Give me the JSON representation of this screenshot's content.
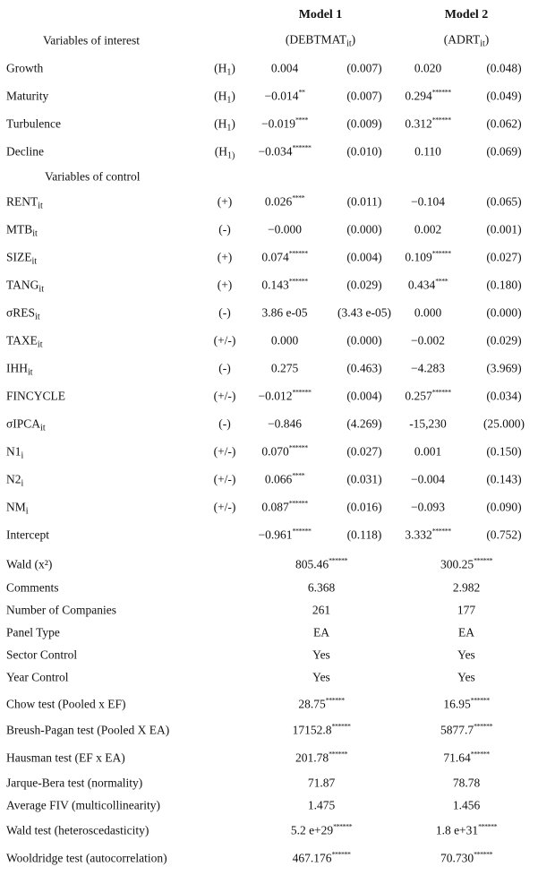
{
  "header": {
    "model1": {
      "title": "Model 1",
      "dep": "(DEBTMAT",
      "sub": "it",
      "close": ")"
    },
    "model2": {
      "title": "Model 2",
      "dep": "(ADRT",
      "sub": "it",
      "close": ")"
    }
  },
  "sections": {
    "interest": "Variables of interest",
    "control": "Variables of control"
  },
  "interest_rows": [
    {
      "label": "Growth",
      "sign": {
        "text": "(H",
        "sub": "1",
        "close": ")"
      },
      "m1": "0.004",
      "m1_se": "(0.007)",
      "m2": "0.020",
      "m2_se": "(0.048)"
    },
    {
      "label": "Maturity",
      "sign": {
        "text": "(H",
        "sub": "1",
        "close": ")"
      },
      "m1": "−0.014",
      "m1_stars": "**",
      "m1_se": "(0.007)",
      "m2": "0.294",
      "m2_stars": "******",
      "m2_se": "(0.049)"
    },
    {
      "label": "Turbulence",
      "sign": {
        "text": "(H",
        "sub": "1",
        "close": ")"
      },
      "m1": "−0.019",
      "m1_stars": "****",
      "m1_se": "(0.009)",
      "m2": "0.312",
      "m2_stars": "******",
      "m2_se": "(0.062)"
    },
    {
      "label": "Decline",
      "sign": {
        "text": "(H",
        "sub": "1)"
      },
      "m1": "−0.034",
      "m1_stars": "******",
      "m1_se": "(0.010)",
      "m2": "0.110",
      "m2_se": "(0.069)"
    }
  ],
  "control_rows": [
    {
      "label": "RENT",
      "sub": "it",
      "sign": "(+)",
      "m1": "0.026",
      "m1_stars": "****",
      "m1_se": "(0.011)",
      "m2": "−0.104",
      "m2_se": "(0.065)"
    },
    {
      "label": "MTB",
      "sub": "it",
      "sign": "(-)",
      "m1": "−0.000",
      "m1_se": "(0.000)",
      "m2": "0.002",
      "m2_se": "(0.001)"
    },
    {
      "label": "SIZE",
      "sub": "it",
      "sign": "(+)",
      "m1": "0.074",
      "m1_stars": "******",
      "m1_se": "(0.004)",
      "m2": "0.109",
      "m2_stars": "******",
      "m2_se": "(0.027)"
    },
    {
      "label": "TANG",
      "sub": "it",
      "sign": "(+)",
      "m1": "0.143",
      "m1_stars": "******",
      "m1_se": "(0.029)",
      "m2": "0.434",
      "m2_stars": "****",
      "m2_se": "(0.180)"
    },
    {
      "label": "σRES",
      "sub": "it",
      "sign": "(-)",
      "m1": "3.86 e-05",
      "m1_se": "(3.43 e-05)",
      "m2": "0.000",
      "m2_se": "(0.000)"
    },
    {
      "label": "TAXE",
      "sub": "it",
      "sign": "(+/-)",
      "m1": "0.000",
      "m1_se": "(0.000)",
      "m2": "−0.002",
      "m2_se": "(0.029)"
    },
    {
      "label": "IHH",
      "sub": "it",
      "sign": "(-)",
      "m1": "0.275",
      "m1_se": "(0.463)",
      "m2": "−4.283",
      "m2_se": "(3.969)"
    },
    {
      "label": "FINCYCLE",
      "sign": "(+/-)",
      "m1": "−0.012",
      "m1_stars": "******",
      "m1_se": "(0.004)",
      "m2": "0.257",
      "m2_stars": "******",
      "m2_se": "(0.034)"
    },
    {
      "label": "σIPCA",
      "sub": "it",
      "sign": "(-)",
      "m1": "−0.846",
      "m1_se": "(4.269)",
      "m2": "-15,230",
      "m2_se": "(25.000)"
    },
    {
      "label": "N1",
      "sub": "i",
      "sign": "(+/-)",
      "m1": "0.070",
      "m1_stars": "******",
      "m1_se": "(0.027)",
      "m2": "0.001",
      "m2_se": "(0.150)"
    },
    {
      "label": "N2",
      "sub": "i",
      "sign": "(+/-)",
      "m1": "0.066",
      "m1_stars": "****",
      "m1_se": "(0.031)",
      "m2": "−0.004",
      "m2_se": "(0.143)"
    },
    {
      "label": "NM",
      "sub": "i",
      "sign": "(+/-)",
      "m1": "0.087",
      "m1_stars": "******",
      "m1_se": "(0.016)",
      "m2": "−0.093",
      "m2_se": "(0.090)"
    },
    {
      "label": "Intercept",
      "m1": "−0.961",
      "m1_stars": "******",
      "m1_se": "(0.118)",
      "m2": "3.332",
      "m2_stars": "******",
      "m2_se": "(0.752)"
    }
  ],
  "stats_rows": [
    {
      "label": "Wald (x²)",
      "m1": "805.46",
      "m1_stars": "******",
      "m2": "300.25",
      "m2_stars": "******"
    },
    {
      "label": "Comments",
      "m1": "6.368",
      "m2": "2.982"
    },
    {
      "label": "Number of Companies",
      "m1": "261",
      "m2": "177"
    },
    {
      "label": "Panel Type",
      "m1": "EA",
      "m2": "EA"
    },
    {
      "label": "Sector Control",
      "m1": "Yes",
      "m2": "Yes"
    },
    {
      "label": "Year Control",
      "m1": "Yes",
      "m2": "Yes"
    },
    {
      "label": "Chow test (Pooled x EF)",
      "m1": "28.75",
      "m1_stars": "******",
      "m2": "16.95",
      "m2_stars": "******"
    },
    {
      "label": "Breush-Pagan test (Pooled X EA)",
      "m1": "17152.8",
      "m1_stars": "******",
      "m2": "5877.7",
      "m2_stars": "******"
    },
    {
      "label": "Hausman test (EF x EA)",
      "m1": "201.78",
      "m1_stars": "******",
      "m2": "71.64",
      "m2_stars": "******"
    },
    {
      "label": "Jarque-Bera test (normality)",
      "m1": "71.87",
      "m2": "78.78"
    },
    {
      "label": "Average FIV (multicollinearity)",
      "m1": "1.475",
      "m2": "1.456"
    },
    {
      "label": "Wald test (heteroscedasticity)",
      "m1": "5.2 e+29",
      "m1_stars": "******",
      "m2": "1.8 e+31",
      "m2_stars": "******"
    },
    {
      "label": "Wooldridge test (autocorrelation)",
      "m1": "467.176",
      "m1_stars": "******",
      "m2": "70.730",
      "m2_stars": "******"
    }
  ]
}
